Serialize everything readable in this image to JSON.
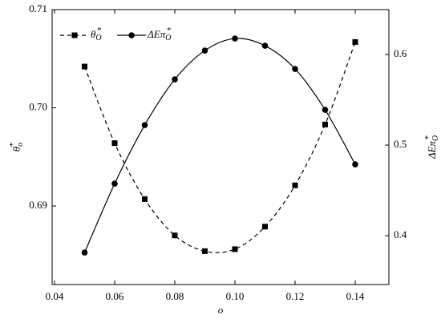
{
  "chart_data": {
    "type": "line",
    "x_label": "o",
    "y_label": "θo*",
    "y2_label": "ΔEπO*",
    "x": [
      0.05,
      0.06,
      0.07,
      0.08,
      0.09,
      0.1,
      0.11,
      0.12,
      0.13,
      0.14
    ],
    "series": [
      {
        "name": "θO*",
        "color": "#000000",
        "marker": "square",
        "dash": true,
        "values": [
          0.7042,
          0.6964,
          0.6907,
          0.687,
          0.6854,
          0.6856,
          0.6879,
          0.6921,
          0.6983,
          0.7067
        ]
      },
      {
        "name": "ΔEπO*",
        "color": "#000000",
        "marker": "circle",
        "dash": false,
        "axis": "y2",
        "values": [
          0.3814,
          0.4575,
          0.5221,
          0.5726,
          0.6044,
          0.6177,
          0.6097,
          0.5841,
          0.5389,
          0.4788
        ]
      }
    ],
    "xlim": [
      0.0392,
      0.1512
    ],
    "xticks": [
      0.04,
      0.06,
      0.08,
      {
        "value": 0.1,
        "label": "0.10"
      },
      0.12,
      0.14
    ],
    "ylim": [
      0.682,
      0.71
    ],
    "yticks": [
      0.69,
      {
        "value": 0.7,
        "label": "0.70"
      },
      0.71
    ],
    "y2lim": [
      0.3461,
      0.6496
    ],
    "y2ticks": [
      0.4,
      0.5,
      0.6
    ],
    "smooth": true,
    "legend": "top-left"
  }
}
